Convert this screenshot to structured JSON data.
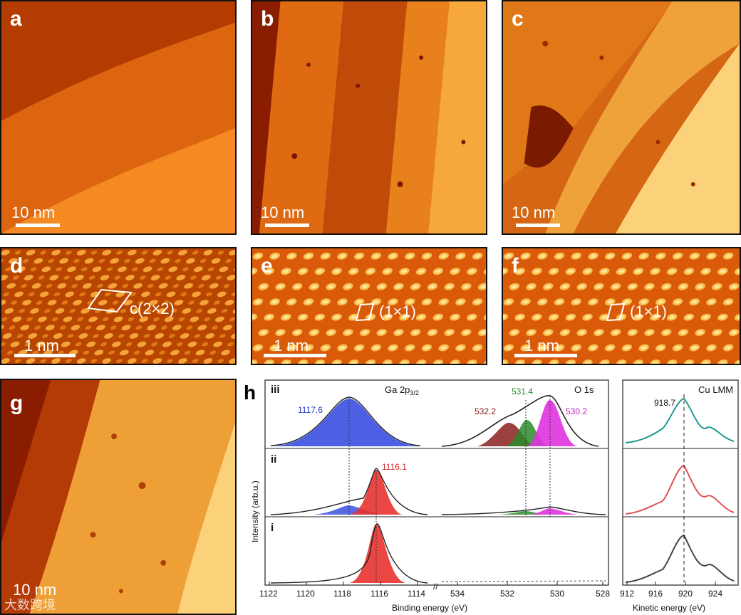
{
  "panels": {
    "a": {
      "label": "a",
      "scale": "10 nm"
    },
    "b": {
      "label": "b",
      "scale": "10 nm"
    },
    "c": {
      "label": "c",
      "scale": "10 nm"
    },
    "d": {
      "label": "d",
      "scale": "1 nm",
      "cell": "c(2×2)"
    },
    "e": {
      "label": "e",
      "scale": "1 nm",
      "cell": "(1×1)"
    },
    "f": {
      "label": "f",
      "scale": "1 nm",
      "cell": "(1×1)"
    },
    "g": {
      "label": "g",
      "scale": "10 nm"
    },
    "h": {
      "label": "h"
    }
  },
  "colors": {
    "stm_dark": "#a82a00",
    "stm_mid": "#e56a00",
    "stm_light": "#fbbb4a",
    "ga_blue": "#3a4fe0",
    "ga_red": "#e8322f",
    "o_brown": "#8b2020",
    "o_green": "#2a8a2a",
    "o_magenta": "#e033e0",
    "cu_teal": "#1e9a8e",
    "cu_red": "#e05050",
    "cu_gray": "#444444"
  },
  "h": {
    "row_labels": [
      "iii",
      "ii",
      "i"
    ],
    "ga_title": "Ga 2p",
    "ga_title_sub": "3/2",
    "o_title": "O 1s",
    "cu_title": "Cu LMM",
    "peaks": {
      "ga_iii": "1117.6",
      "ga_ii": "1116.1",
      "o_532": "532.2",
      "o_531": "531.4",
      "o_530": "530.2",
      "cu": "918.7"
    },
    "ylabel": "Intensity (arb.u.)",
    "xlabel_be": "Binding energy (eV)",
    "xlabel_ke": "Kinetic energy (eV)",
    "ticks_ga": [
      "1122",
      "1120",
      "1118",
      "1116",
      "1114"
    ],
    "ticks_o": [
      "534",
      "532",
      "530",
      "528"
    ],
    "ticks_cu": [
      "912",
      "916",
      "920",
      "924"
    ],
    "break_mark": "//"
  },
  "watermark": "大数跨境"
}
